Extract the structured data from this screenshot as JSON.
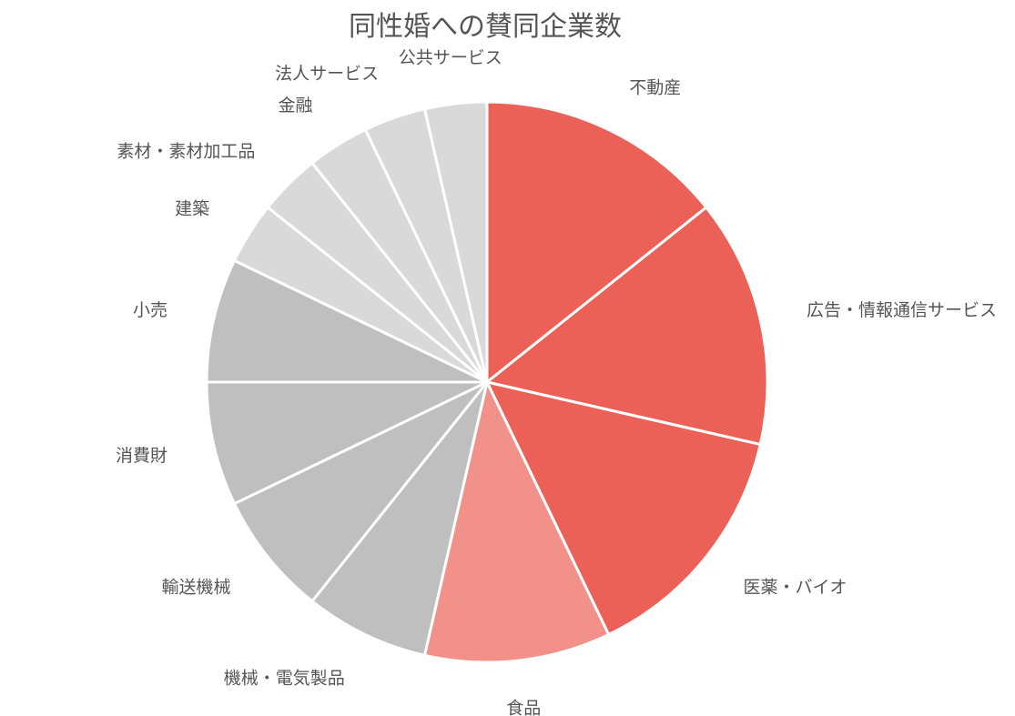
{
  "chart_data": {
    "type": "pie",
    "title": "同性婚への賛同企業数",
    "start_angle": "12 o'clock, clockwise",
    "legend": "none",
    "slices": [
      {
        "label": "不動産",
        "value": 4,
        "color": "#EB6157"
      },
      {
        "label": "広告・情報通信サービス",
        "value": 4,
        "color": "#EB6157"
      },
      {
        "label": "医薬・バイオ",
        "value": 4,
        "color": "#EB6157"
      },
      {
        "label": "食品",
        "value": 3,
        "color": "#F2918A"
      },
      {
        "label": "機械・電気製品",
        "value": 2,
        "color": "#BFBFBF"
      },
      {
        "label": "輸送機械",
        "value": 2,
        "color": "#BFBFBF"
      },
      {
        "label": "消費財",
        "value": 2,
        "color": "#BFBFBF"
      },
      {
        "label": "小売",
        "value": 2,
        "color": "#BFBFBF"
      },
      {
        "label": "建築",
        "value": 1,
        "color": "#D9D9D9"
      },
      {
        "label": "素材・素材加工品",
        "value": 1,
        "color": "#D9D9D9"
      },
      {
        "label": "金融",
        "value": 1,
        "color": "#D9D9D9"
      },
      {
        "label": "法人サービス",
        "value": 1,
        "color": "#D9D9D9"
      },
      {
        "label": "公共サービス",
        "value": 1,
        "color": "#D9D9D9"
      }
    ]
  }
}
